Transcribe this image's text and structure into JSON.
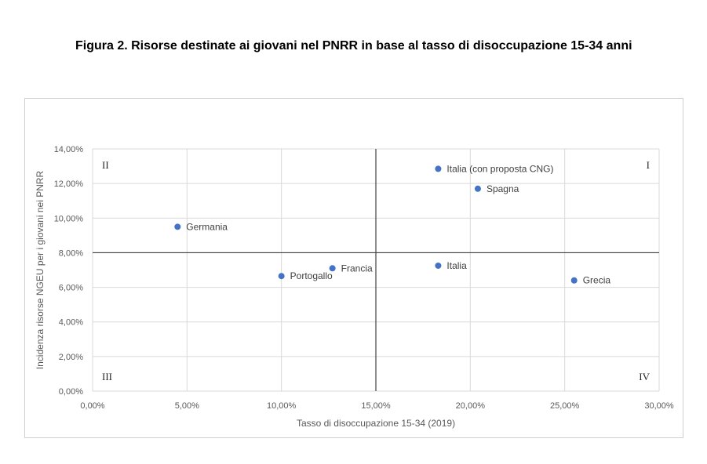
{
  "figure": {
    "title": "Figura 2. Risorse destinate ai giovani nel PNRR in base al tasso di disoccupazione 15-34 anni"
  },
  "chart_data": {
    "type": "scatter",
    "title": "",
    "xlabel": "Tasso di disoccupazione 15-34 (2019)",
    "ylabel": "Incidenza risorse NGEU per i giovani nei PNRR",
    "xlim": [
      0,
      30
    ],
    "ylim": [
      0,
      14
    ],
    "x_ticks": [
      0,
      5,
      10,
      15,
      20,
      25,
      30
    ],
    "y_ticks": [
      0,
      2,
      4,
      6,
      8,
      10,
      12,
      14
    ],
    "x_tick_labels": [
      "0,00%",
      "5,00%",
      "10,00%",
      "15,00%",
      "20,00%",
      "25,00%",
      "30,00%"
    ],
    "y_tick_labels": [
      "0,00%",
      "2,00%",
      "4,00%",
      "6,00%",
      "8,00%",
      "10,00%",
      "12,00%",
      "14,00%"
    ],
    "grid": true,
    "reference_lines": {
      "x": 15,
      "y": 8
    },
    "quadrant_labels": {
      "I": "I",
      "II": "II",
      "III": "III",
      "IV": "IV"
    },
    "marker_color": "#4472c4",
    "points": [
      {
        "label": "Italia (con proposta CNG)",
        "x": 18.3,
        "y": 12.85
      },
      {
        "label": "Spagna",
        "x": 20.4,
        "y": 11.7
      },
      {
        "label": "Germania",
        "x": 4.5,
        "y": 9.5
      },
      {
        "label": "Italia",
        "x": 18.3,
        "y": 7.25
      },
      {
        "label": "Francia",
        "x": 12.7,
        "y": 7.1
      },
      {
        "label": "Portogallo",
        "x": 10.0,
        "y": 6.65
      },
      {
        "label": "Grecia",
        "x": 25.5,
        "y": 6.4
      }
    ]
  }
}
